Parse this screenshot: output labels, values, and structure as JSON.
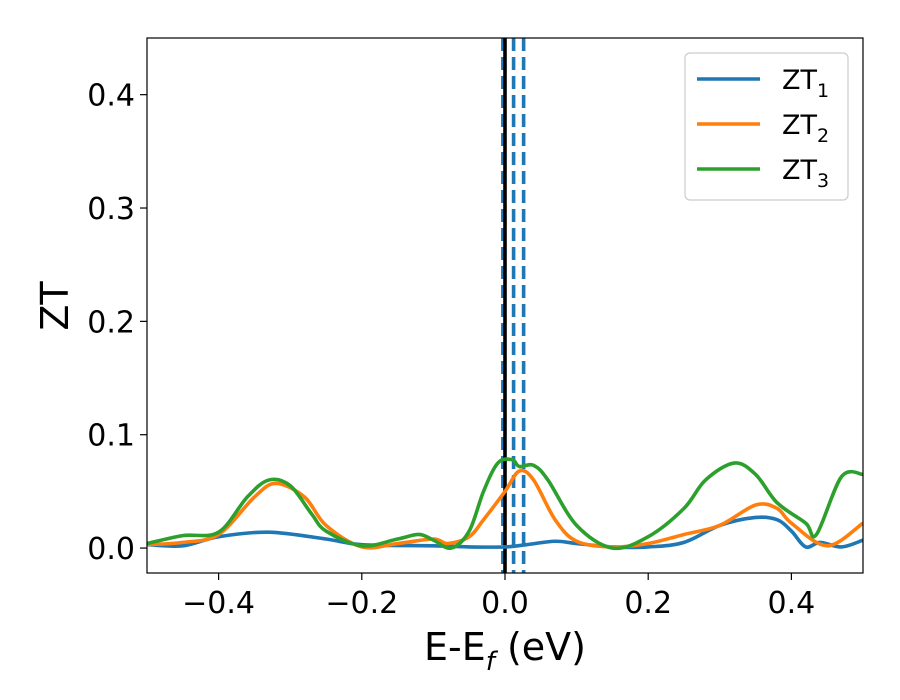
{
  "chart_data": {
    "type": "line",
    "title": "",
    "xlabel": "E-E",
    "xlabel_sub": "f",
    "xlabel_unit": " (eV)",
    "ylabel": "ZT",
    "xlim": [
      -0.5,
      0.5
    ],
    "ylim": [
      -0.022,
      0.45
    ],
    "xticks": [
      -0.4,
      -0.2,
      0.0,
      0.2,
      0.4
    ],
    "xtick_labels": [
      "−0.4",
      "−0.2",
      "0.0",
      "0.2",
      "0.4"
    ],
    "yticks": [
      0.0,
      0.1,
      0.2,
      0.3,
      0.4
    ],
    "ytick_labels": [
      "0.0",
      "0.1",
      "0.2",
      "0.3",
      "0.4"
    ],
    "grid": false,
    "legend_position": "top-right",
    "vlines": [
      {
        "x": 0.0,
        "color": "#000000",
        "style": "solid"
      },
      {
        "x": -0.003,
        "color": "#1f77b4",
        "style": "dashed"
      },
      {
        "x": 0.012,
        "color": "#1f77b4",
        "style": "dashed"
      },
      {
        "x": 0.026,
        "color": "#1f77b4",
        "style": "dashed"
      }
    ],
    "series": [
      {
        "name": "ZT",
        "name_sub": "1",
        "color": "#1f77b4",
        "x": [
          -0.5,
          -0.45,
          -0.4,
          -0.33,
          -0.25,
          -0.2,
          -0.1,
          -0.05,
          0.0,
          0.03,
          0.07,
          0.1,
          0.15,
          0.2,
          0.25,
          0.3,
          0.35,
          0.38,
          0.4,
          0.42,
          0.44,
          0.47,
          0.5
        ],
        "y": [
          0.003,
          0.002,
          0.01,
          0.014,
          0.008,
          0.003,
          0.002,
          0.001,
          0.001,
          0.003,
          0.006,
          0.004,
          0.001,
          0.001,
          0.005,
          0.02,
          0.027,
          0.025,
          0.015,
          0.001,
          0.005,
          0.001,
          0.007
        ]
      },
      {
        "name": "ZT",
        "name_sub": "2",
        "color": "#ff7f0e",
        "x": [
          -0.5,
          -0.45,
          -0.4,
          -0.35,
          -0.32,
          -0.28,
          -0.25,
          -0.2,
          -0.15,
          -0.1,
          -0.08,
          -0.05,
          -0.03,
          0.0,
          0.02,
          0.04,
          0.07,
          0.1,
          0.15,
          0.2,
          0.25,
          0.3,
          0.35,
          0.38,
          0.4,
          0.45,
          0.5
        ],
        "y": [
          0.003,
          0.005,
          0.012,
          0.045,
          0.057,
          0.045,
          0.02,
          0.001,
          0.004,
          0.008,
          0.004,
          0.01,
          0.025,
          0.05,
          0.068,
          0.06,
          0.025,
          0.006,
          0.001,
          0.004,
          0.012,
          0.02,
          0.038,
          0.035,
          0.022,
          0.002,
          0.022
        ]
      },
      {
        "name": "ZT",
        "name_sub": "3",
        "color": "#2ca02c",
        "x": [
          -0.5,
          -0.45,
          -0.4,
          -0.36,
          -0.33,
          -0.3,
          -0.27,
          -0.25,
          -0.2,
          -0.15,
          -0.12,
          -0.1,
          -0.075,
          -0.05,
          -0.03,
          -0.01,
          0.01,
          0.02,
          0.04,
          0.06,
          0.1,
          0.15,
          0.2,
          0.25,
          0.28,
          0.32,
          0.35,
          0.38,
          0.42,
          0.435,
          0.47,
          0.5
        ],
        "y": [
          0.004,
          0.011,
          0.014,
          0.045,
          0.06,
          0.055,
          0.03,
          0.015,
          0.002,
          0.008,
          0.012,
          0.007,
          0.0,
          0.015,
          0.05,
          0.075,
          0.078,
          0.072,
          0.073,
          0.06,
          0.02,
          0.0,
          0.01,
          0.035,
          0.06,
          0.075,
          0.065,
          0.04,
          0.022,
          0.012,
          0.063,
          0.065
        ]
      }
    ]
  }
}
